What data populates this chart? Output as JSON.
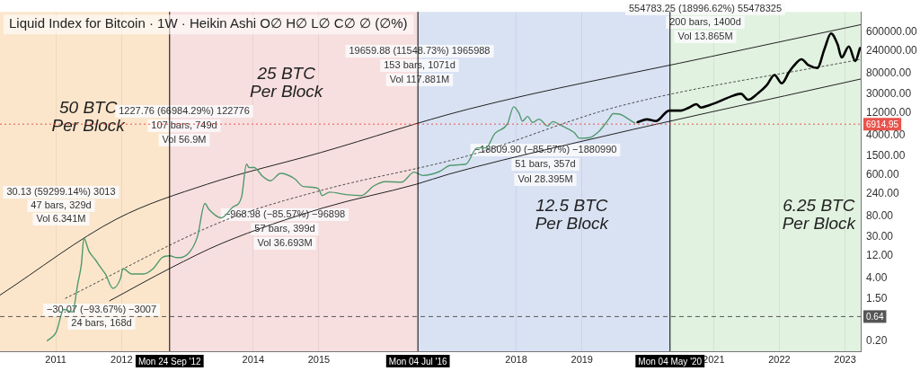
{
  "chart_data": {
    "type": "line",
    "title": "Liquid Index for Bitcoin · 1W · Heikin Ashi O∅ H∅ L∅ C∅ ∅ (∅%)",
    "log": true,
    "grid": "x",
    "legend": false,
    "marker": "none",
    "xlim": [
      "2010-02-25",
      "2023-03-29"
    ],
    "xticks": [
      "2011",
      "2012",
      "2014",
      "2015",
      "2018",
      "2019",
      "2021",
      "2022",
      "2023"
    ],
    "ylim": [
      0.12,
      1560000
    ],
    "yticks": [
      {
        "value": 0.2,
        "label": "0.20"
      },
      {
        "value": 1.5,
        "label": "1.50"
      },
      {
        "value": 4,
        "label": "4.00"
      },
      {
        "value": 12,
        "label": "12.00"
      },
      {
        "value": 30,
        "label": "30.00"
      },
      {
        "value": 80,
        "label": "80.00"
      },
      {
        "value": 240,
        "label": "240.00"
      },
      {
        "value": 600,
        "label": "600.00"
      },
      {
        "value": 1500,
        "label": "1500.00"
      },
      {
        "value": 4000,
        "label": "4000.00"
      },
      {
        "value": 12000,
        "label": "12000.00"
      },
      {
        "value": 30000,
        "label": "30000.00"
      },
      {
        "value": 80000,
        "label": "80000.00"
      },
      {
        "value": 240000,
        "label": "240000.00"
      },
      {
        "value": 600000,
        "label": "600000.00"
      }
    ],
    "series": [
      {
        "color": "#4f9a6e",
        "x": [
          "2010-11-15",
          "2011-01-03",
          "2011-02-14",
          "2011-04-04",
          "2011-05-02",
          "2011-05-23",
          "2011-06-06",
          "2011-07-04",
          "2011-08-08",
          "2011-09-05",
          "2011-10-03",
          "2011-11-14",
          "2011-12-26",
          "2012-01-09",
          "2012-02-27",
          "2012-04-30",
          "2012-06-25",
          "2012-08-13",
          "2012-09-24",
          "2012-11-05",
          "2013-01-07",
          "2013-02-25",
          "2013-04-08",
          "2013-04-29",
          "2013-07-08",
          "2013-09-09",
          "2013-10-28",
          "2013-11-25",
          "2013-12-09",
          "2014-01-06",
          "2014-02-24",
          "2014-04-07",
          "2014-06-02",
          "2014-08-18",
          "2014-10-06",
          "2014-12-29",
          "2015-01-19",
          "2015-03-02",
          "2015-06-01",
          "2015-08-24",
          "2015-11-02",
          "2016-01-04",
          "2016-04-04",
          "2016-06-13",
          "2016-08-01",
          "2016-10-31",
          "2017-01-02",
          "2017-03-27",
          "2017-05-29",
          "2017-07-17",
          "2017-09-04",
          "2017-11-13",
          "2017-12-18",
          "2018-01-15",
          "2018-02-05",
          "2018-03-05",
          "2018-04-02",
          "2018-05-07",
          "2018-06-25",
          "2018-07-23",
          "2018-09-10",
          "2018-11-19",
          "2018-12-17",
          "2019-02-11",
          "2019-04-08",
          "2019-05-27",
          "2019-06-24",
          "2019-08-05",
          "2019-09-23",
          "2019-10-21"
        ],
        "values": [
          0.2,
          0.3,
          0.9,
          0.8,
          3,
          8,
          28,
          15,
          10,
          7,
          5,
          2.5,
          4,
          6.5,
          5,
          5,
          6.5,
          11,
          12,
          11,
          13.5,
          30,
          150,
          115,
          75,
          125,
          200,
          1000,
          850,
          850,
          550,
          450,
          640,
          500,
          340,
          310,
          220,
          260,
          230,
          220,
          350,
          430,
          420,
          680,
          580,
          700,
          950,
          1000,
          2200,
          2200,
          4400,
          7000,
          16000,
          12000,
          8000,
          10000,
          7500,
          8800,
          6300,
          7800,
          6400,
          4600,
          3500,
          3600,
          5000,
          8500,
          11500,
          11000,
          8500,
          7300
        ]
      },
      {
        "color": "#000000",
        "x": [
          "2019-11-06",
          "2019-12-27",
          "2020-02-16",
          "2020-04-30",
          "2020-07-05",
          "2020-08-18",
          "2020-09-27",
          "2020-10-23",
          "2020-12-13",
          "2021-01-15",
          "2021-04-05",
          "2021-06-02",
          "2021-07-12",
          "2021-09-02",
          "2021-10-23",
          "2021-12-05",
          "2022-01-15",
          "2022-02-24",
          "2022-03-21",
          "2022-05-04",
          "2022-06-13",
          "2022-07-31",
          "2022-09-09",
          "2022-10-15",
          "2022-11-21",
          "2022-12-13",
          "2023-01-22",
          "2023-02-27",
          "2023-03-25"
        ],
        "values": [
          7600,
          8700,
          8000,
          13300,
          13300,
          15400,
          18100,
          15400,
          17500,
          19400,
          26000,
          30000,
          22400,
          30000,
          45000,
          74000,
          49500,
          85000,
          113000,
          158000,
          118000,
          104000,
          261000,
          550000,
          322000,
          172000,
          294000,
          146000,
          272000
        ]
      },
      {
        "color": "#222222",
        "x": [
          "2010-02-25",
          "2011-12-05",
          "2013-04-20",
          "2015-01-15",
          "2017-04-05",
          "2020-12-13",
          "2023-03-29"
        ],
        "values": [
          1.8,
          71,
          380,
          1770,
          14100,
          179000,
          840000
        ]
      },
      {
        "color": "#222222",
        "x": [
          "2011-10-27",
          "2012-10-01",
          "2013-07-12",
          "2015-01-27",
          "2016-06-25",
          "2016-12-24",
          "2018-08-14",
          "2023-03-29"
        ],
        "values": [
          1.37,
          6.7,
          22,
          122,
          380,
          620,
          2280,
          61000
        ]
      },
      {
        "color": "#444444",
        "line_style": "dotted",
        "x": [
          "2011-02-24",
          "2013-07-26",
          "2015-01-15",
          "2017-04-05",
          "2019-07-16",
          "2023-03-29"
        ],
        "values": [
          1.55,
          66,
          283,
          1490,
          16000,
          158000
        ]
      }
    ],
    "bands": [
      {
        "axis": "x",
        "from": "2010-02-25",
        "to": "2012-09-24",
        "label": "50 BTC Per Block",
        "color": "#fbe6cc"
      },
      {
        "axis": "x",
        "from": "2012-09-24",
        "to": "2016-07-04",
        "label": "25 BTC Per Block",
        "color": "#f8dfdf"
      },
      {
        "axis": "x",
        "from": "2016-07-04",
        "to": "2020-05-04",
        "label": "12.5 BTC Per Block",
        "color": "#d9e2f3"
      },
      {
        "axis": "x",
        "from": "2020-05-04",
        "to": "2023-03-29",
        "label": "6.25 BTC Per Block",
        "color": "#e1f2e0"
      }
    ],
    "ref_lines": [
      {
        "axis": "x",
        "value": "2012-09-24",
        "label": "Mon 24 Sep '12",
        "color": "#000000"
      },
      {
        "axis": "x",
        "value": "2016-07-04",
        "label": "Mon 04 Jul '16",
        "color": "#000000"
      },
      {
        "axis": "x",
        "value": "2020-05-04",
        "label": "Mon 04 May '20",
        "color": "#000000"
      },
      {
        "axis": "y",
        "value": 0.64,
        "label": "0.64",
        "color": "#555555",
        "line_style": "dashed"
      },
      {
        "axis": "y",
        "value": 6914.95,
        "label": "6914.95",
        "color": "#e8534b",
        "line_style": "dotted"
      }
    ],
    "annotations": [
      "30.13 (59299.14%) 3013",
      "47 bars, 329d",
      "Vol 6.341M",
      "−30.07 (−93.67%) −3007",
      "24 bars, 168d",
      "1227.76 (66984.29%) 122776",
      "107 bars, 749d",
      "Vol 56.9M",
      "−968.98 (−85.57%) −96898",
      "57 bars, 399d",
      "Vol 36.693M",
      "19659.88 (11548.73%) 1965988",
      "153 bars, 1071d",
      "Vol 117.881M",
      "−18809.90 (−85.57%) −1880990",
      "51 bars, 357d",
      "Vol 28.395M",
      "554783.25 (18996.62%) 55478325",
      "200 bars, 1400d",
      "Vol 13.865M"
    ]
  }
}
